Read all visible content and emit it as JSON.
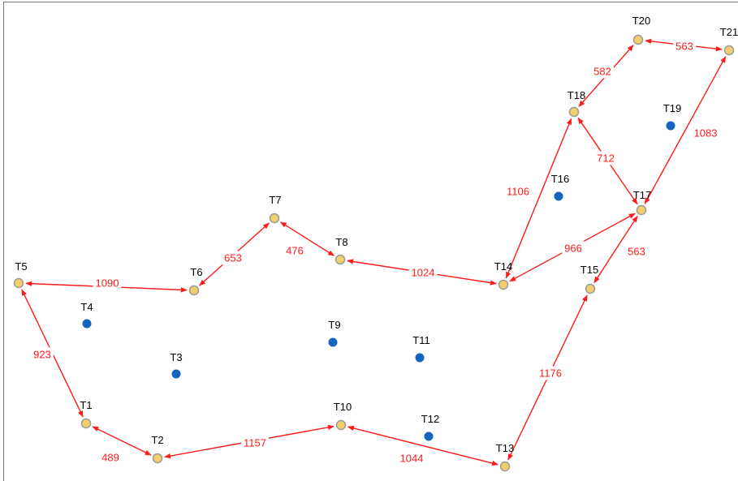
{
  "colors": {
    "edge": "#ff1a1a",
    "active_node_fill": "#f2cf6b",
    "idle_node_fill": "#1565c0",
    "label": "#000000"
  },
  "nodes": [
    {
      "id": "T1",
      "label": "T1",
      "kind": "active"
    },
    {
      "id": "T2",
      "label": "T2",
      "kind": "active"
    },
    {
      "id": "T3",
      "label": "T3",
      "kind": "idle"
    },
    {
      "id": "T4",
      "label": "T4",
      "kind": "idle"
    },
    {
      "id": "T5",
      "label": "T5",
      "kind": "active"
    },
    {
      "id": "T6",
      "label": "T6",
      "kind": "active"
    },
    {
      "id": "T7",
      "label": "T7",
      "kind": "active"
    },
    {
      "id": "T8",
      "label": "T8",
      "kind": "active"
    },
    {
      "id": "T9",
      "label": "T9",
      "kind": "idle"
    },
    {
      "id": "T10",
      "label": "T10",
      "kind": "active"
    },
    {
      "id": "T11",
      "label": "T11",
      "kind": "idle"
    },
    {
      "id": "T12",
      "label": "T12",
      "kind": "idle"
    },
    {
      "id": "T13",
      "label": "T13",
      "kind": "active"
    },
    {
      "id": "T14",
      "label": "T14",
      "kind": "active"
    },
    {
      "id": "T15",
      "label": "T15",
      "kind": "active"
    },
    {
      "id": "T16",
      "label": "T16",
      "kind": "idle"
    },
    {
      "id": "T17",
      "label": "T17",
      "kind": "active"
    },
    {
      "id": "T18",
      "label": "T18",
      "kind": "active"
    },
    {
      "id": "T19",
      "label": "T19",
      "kind": "idle"
    },
    {
      "id": "T20",
      "label": "T20",
      "kind": "active"
    },
    {
      "id": "T21",
      "label": "T21",
      "kind": "active"
    }
  ],
  "edges": [
    {
      "from": "T5",
      "to": "T1",
      "label": "923"
    },
    {
      "from": "T1",
      "to": "T2",
      "label": "489"
    },
    {
      "from": "T2",
      "to": "T10",
      "label": "1157"
    },
    {
      "from": "T10",
      "to": "T13",
      "label": "1044"
    },
    {
      "from": "T13",
      "to": "T15",
      "label": "1176"
    },
    {
      "from": "T15",
      "to": "T17",
      "label": "563"
    },
    {
      "from": "T17",
      "to": "T14",
      "label": "966"
    },
    {
      "from": "T14",
      "to": "T18",
      "label": "1106"
    },
    {
      "from": "T18",
      "to": "T17",
      "label": "712"
    },
    {
      "from": "T17",
      "to": "T21",
      "label": "1083"
    },
    {
      "from": "T21",
      "to": "T20",
      "label": "563"
    },
    {
      "from": "T20",
      "to": "T18",
      "label": "582"
    },
    {
      "from": "T14",
      "to": "T8",
      "label": "1024"
    },
    {
      "from": "T8",
      "to": "T7",
      "label": "476"
    },
    {
      "from": "T7",
      "to": "T6",
      "label": "653"
    },
    {
      "from": "T6",
      "to": "T5",
      "label": "1090"
    }
  ]
}
